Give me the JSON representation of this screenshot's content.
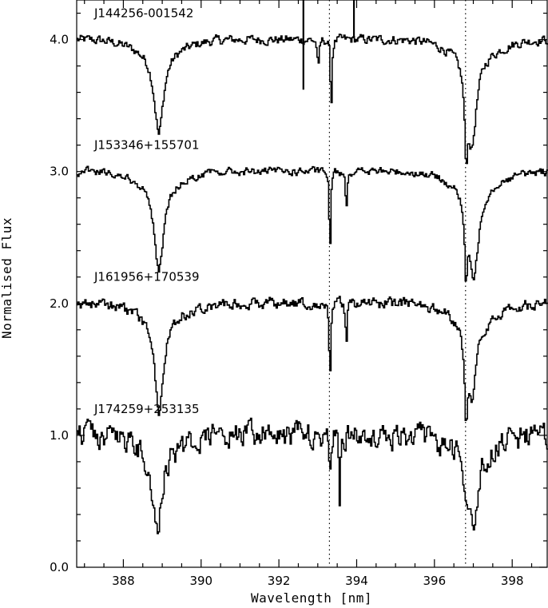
{
  "chart_data": {
    "type": "line",
    "title": "",
    "xlabel": "Wavelength [nm]",
    "ylabel": "Normalised Flux",
    "xlim": [
      386.8,
      398.9
    ],
    "ylim": [
      0.0,
      4.3
    ],
    "x_ticks": [
      388,
      390,
      392,
      394,
      396,
      398
    ],
    "x_tick_labels": [
      "388",
      "390",
      "392",
      "394",
      "396",
      "398"
    ],
    "y_ticks": [
      0.0,
      1.0,
      2.0,
      3.0,
      4.0
    ],
    "y_tick_labels": [
      "0.0",
      "1.0",
      "2.0",
      "3.0",
      "4.0"
    ],
    "reference_lines_nm": [
      393.3,
      396.8
    ],
    "grid": false,
    "series": [
      {
        "name": "J144256-001542",
        "offset": 3.0,
        "noise": 0.03,
        "lines": [
          {
            "center": 388.9,
            "depth": 0.62,
            "width": 0.16
          },
          {
            "center": 393.0,
            "depth": 0.25,
            "width": 0.03
          },
          {
            "center": 393.33,
            "depth": 0.58,
            "width": 0.025
          },
          {
            "center": 396.8,
            "depth": 0.55,
            "width": 0.05
          },
          {
            "center": 396.95,
            "depth": 0.68,
            "width": 0.16
          }
        ],
        "spikes": [
          {
            "x": 392.63,
            "ymin": 3.62,
            "ymax": 4.3
          },
          {
            "x": 393.93,
            "ymin": 4.02,
            "ymax": 4.3
          }
        ]
      },
      {
        "name": "J153346+155701",
        "offset": 2.0,
        "noise": 0.025,
        "lines": [
          {
            "center": 388.9,
            "depth": 0.66,
            "width": 0.16
          },
          {
            "center": 393.3,
            "depth": 0.66,
            "width": 0.025
          },
          {
            "center": 393.72,
            "depth": 0.3,
            "width": 0.025
          },
          {
            "center": 396.8,
            "depth": 0.55,
            "width": 0.05
          },
          {
            "center": 397.0,
            "depth": 0.7,
            "width": 0.16
          }
        ],
        "spikes": []
      },
      {
        "name": "J161956+170539",
        "offset": 1.0,
        "noise": 0.035,
        "lines": [
          {
            "center": 388.9,
            "depth": 0.72,
            "width": 0.16
          },
          {
            "center": 393.3,
            "depth": 0.65,
            "width": 0.025
          },
          {
            "center": 393.72,
            "depth": 0.32,
            "width": 0.025
          },
          {
            "center": 396.8,
            "depth": 0.6,
            "width": 0.05
          },
          {
            "center": 396.95,
            "depth": 0.58,
            "width": 0.16
          }
        ],
        "spikes": []
      },
      {
        "name": "J174259+253135",
        "offset": 0.0,
        "noise": 0.08,
        "lines": [
          {
            "center": 388.85,
            "depth": 0.62,
            "width": 0.16
          },
          {
            "center": 393.3,
            "depth": 0.28,
            "width": 0.025
          },
          {
            "center": 393.55,
            "depth": 0.45,
            "width": 0.025
          },
          {
            "center": 396.8,
            "depth": 0.3,
            "width": 0.06
          },
          {
            "center": 397.0,
            "depth": 0.58,
            "width": 0.16
          }
        ],
        "spikes": []
      }
    ]
  }
}
